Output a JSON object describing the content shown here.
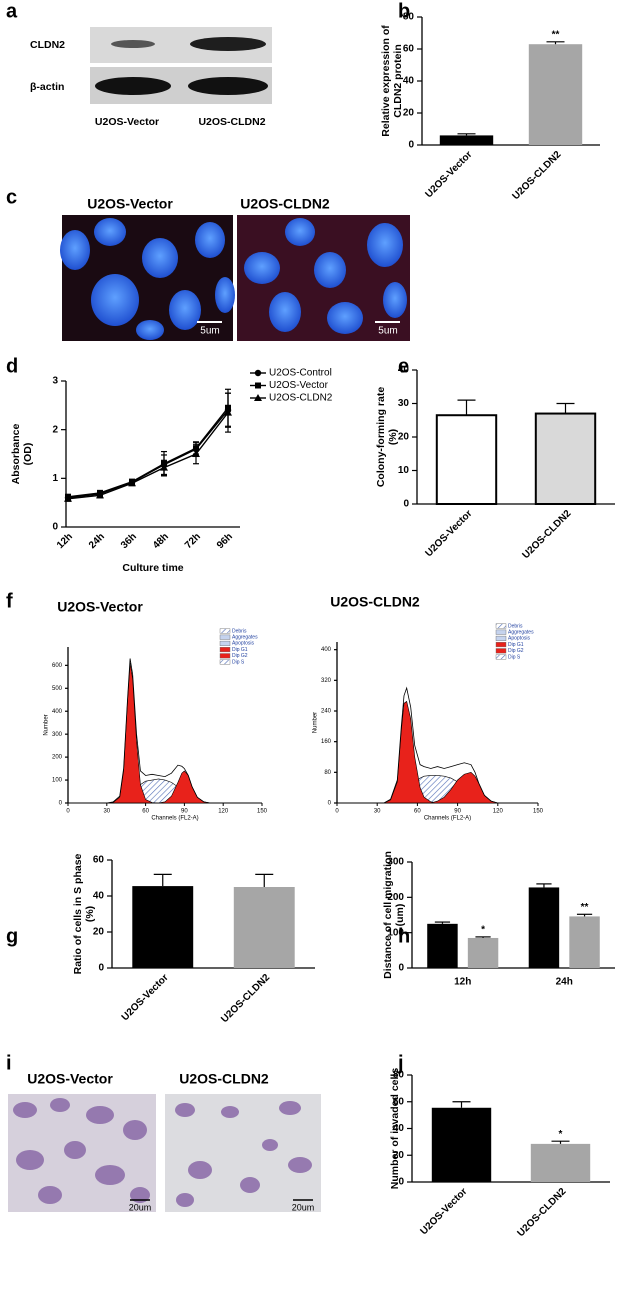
{
  "blot": {
    "panel": "a",
    "rows": [
      "CLDN2",
      "β-actin"
    ],
    "lanes": [
      "U2OS-Vector",
      "U2OS-CLDN2"
    ]
  },
  "immunofluorescence": {
    "panel": "c",
    "titles": [
      "U2OS-Vector",
      "U2OS-CLDN2"
    ],
    "scale_bars": [
      "5um",
      "5um"
    ]
  },
  "invasion_images": {
    "panel": "i",
    "titles": [
      "U2OS-Vector",
      "U2OS-CLDN2"
    ],
    "scale_bars": [
      "20um",
      "20um"
    ]
  },
  "chart_data": [
    {
      "panel": "b",
      "type": "bar",
      "categories": [
        "U2OS-Vector",
        "U2OS-CLDN2"
      ],
      "values": [
        6,
        63
      ],
      "errors": [
        1,
        1.5
      ],
      "colors": [
        "#000000",
        "#a6a6a6"
      ],
      "ylim": [
        0,
        80
      ],
      "yticks": [
        0,
        20,
        40,
        60,
        80
      ],
      "ylabel": [
        "Relative expression of",
        "CLDN2 protein"
      ],
      "annotations": [
        {
          "index": 1,
          "text": "**"
        }
      ]
    },
    {
      "panel": "d",
      "type": "line",
      "categories": [
        "12h",
        "24h",
        "36h",
        "48h",
        "72h",
        "96h"
      ],
      "series": [
        {
          "name": "U2OS-Control",
          "color": "#000000",
          "marker": "circle",
          "values": [
            0.6,
            0.68,
            0.92,
            1.28,
            1.6,
            2.4
          ],
          "errors": [
            0.05,
            0.05,
            0.05,
            0.2,
            0.15,
            0.35
          ]
        },
        {
          "name": "U2OS-Vector",
          "color": "#000000",
          "marker": "square",
          "values": [
            0.62,
            0.7,
            0.93,
            1.3,
            1.62,
            2.45
          ],
          "errors": [
            0.05,
            0.05,
            0.05,
            0.25,
            0.12,
            0.38
          ]
        },
        {
          "name": "U2OS-CLDN2",
          "color": "#000000",
          "marker": "triangle",
          "values": [
            0.58,
            0.65,
            0.9,
            1.22,
            1.5,
            2.35
          ],
          "errors": [
            0.05,
            0.05,
            0.05,
            0.15,
            0.2,
            0.4
          ]
        }
      ],
      "ylim": [
        0,
        3
      ],
      "yticks": [
        0,
        1,
        2,
        3
      ],
      "ylabel": [
        "Absorbance",
        "(OD)"
      ],
      "xlabel": "Culture time"
    },
    {
      "panel": "e",
      "type": "bar",
      "categories": [
        "U2OS-Vector",
        "U2OS-CLDN2"
      ],
      "values": [
        26.5,
        27
      ],
      "errors": [
        4.5,
        3
      ],
      "colors": [
        "#ffffff",
        "#d9d9d9"
      ],
      "edgecolor": "#000000",
      "ylim": [
        0,
        40
      ],
      "yticks": [
        0,
        10,
        20,
        30,
        40
      ],
      "ylabel": [
        "Colony-forming rate",
        "(%)"
      ]
    },
    {
      "panel": "f",
      "type": "area",
      "title": "U2OS-Vector",
      "xlabel": "Channels (FL2-A)",
      "ylabel": "Number",
      "xlim": [
        0,
        150
      ],
      "xticks": [
        0,
        30,
        60,
        90,
        120,
        150
      ],
      "ylim": [
        0,
        680
      ],
      "yticks": [
        0,
        100,
        200,
        300,
        400,
        500,
        600
      ],
      "legend": [
        {
          "name": "Debris",
          "color": "#c5d3ee",
          "hatch": true
        },
        {
          "name": "Aggregates",
          "color": "#c5d3ee"
        },
        {
          "name": "Apoptosis",
          "color": "#c5d3ee"
        },
        {
          "name": "Dip G1",
          "color": "#e8221b"
        },
        {
          "name": "Dip G2",
          "color": "#e8221b"
        },
        {
          "name": "Dip S",
          "color": "#ffffff",
          "hatch": true
        }
      ],
      "x": [
        30,
        35,
        40,
        43,
        46,
        48,
        50,
        53,
        56,
        60,
        65,
        70,
        75,
        80,
        85,
        88,
        90,
        93,
        96,
        100,
        105,
        110
      ],
      "series": [
        {
          "legend": 5,
          "color": "#ffffff",
          "hatch": true,
          "values": [
            0,
            0,
            0,
            0,
            0,
            5,
            30,
            60,
            80,
            95,
            100,
            105,
            100,
            90,
            70,
            50,
            40,
            20,
            8,
            2,
            0,
            0
          ]
        },
        {
          "legend": 3,
          "color": "#e8221b",
          "values": [
            0,
            3,
            25,
            140,
            440,
            610,
            540,
            270,
            80,
            15,
            2,
            0,
            0,
            0,
            0,
            0,
            0,
            0,
            0,
            0,
            0,
            0
          ]
        },
        {
          "legend": 4,
          "color": "#e8221b",
          "values": [
            0,
            0,
            0,
            0,
            0,
            0,
            0,
            0,
            0,
            0,
            0,
            0,
            5,
            30,
            90,
            130,
            140,
            120,
            70,
            25,
            5,
            0
          ]
        },
        {
          "color": "#000000",
          "outline": true,
          "values": [
            0,
            5,
            30,
            150,
            450,
            630,
            560,
            300,
            140,
            120,
            125,
            120,
            115,
            130,
            165,
            160,
            150,
            120,
            70,
            25,
            5,
            0
          ]
        }
      ]
    },
    {
      "type": "area",
      "title": "U2OS-CLDN2",
      "xlabel": "Channels (FL2-A)",
      "ylabel": "Number",
      "xlim": [
        0,
        150
      ],
      "xticks": [
        0,
        30,
        60,
        90,
        120,
        150
      ],
      "ylim": [
        0,
        420
      ],
      "yticks": [
        0,
        80,
        160,
        240,
        320,
        400
      ],
      "legend": [
        {
          "name": "Debris",
          "color": "#c5d3ee",
          "hatch": true
        },
        {
          "name": "Aggregates",
          "color": "#c5d3ee"
        },
        {
          "name": "Apoptosis",
          "color": "#c5d3ee"
        },
        {
          "name": "Dip G1",
          "color": "#e8221b"
        },
        {
          "name": "Dip G2",
          "color": "#e8221b"
        },
        {
          "name": "Dip S",
          "color": "#ffffff",
          "hatch": true
        }
      ],
      "x": [
        35,
        40,
        45,
        48,
        50,
        52,
        55,
        58,
        62,
        65,
        70,
        75,
        80,
        85,
        90,
        95,
        100,
        103,
        106,
        110,
        115,
        120
      ],
      "series": [
        {
          "legend": 5,
          "color": "#ffffff",
          "hatch": true,
          "values": [
            0,
            0,
            0,
            5,
            15,
            25,
            40,
            55,
            65,
            70,
            72,
            72,
            70,
            65,
            55,
            40,
            25,
            15,
            8,
            3,
            0,
            0
          ]
        },
        {
          "legend": 3,
          "color": "#e8221b",
          "values": [
            0,
            8,
            55,
            190,
            260,
            265,
            220,
            120,
            40,
            15,
            3,
            0,
            0,
            0,
            0,
            0,
            0,
            0,
            0,
            0,
            0,
            0
          ]
        },
        {
          "legend": 4,
          "color": "#e8221b",
          "values": [
            0,
            0,
            0,
            0,
            0,
            0,
            0,
            0,
            0,
            0,
            0,
            5,
            15,
            35,
            60,
            75,
            80,
            70,
            50,
            20,
            5,
            0
          ]
        },
        {
          "color": "#000000",
          "outline": true,
          "values": [
            0,
            10,
            60,
            200,
            280,
            300,
            250,
            150,
            100,
            95,
            90,
            95,
            90,
            95,
            100,
            105,
            100,
            80,
            50,
            20,
            5,
            0
          ]
        }
      ]
    },
    {
      "panel": "g",
      "type": "bar",
      "categories": [
        "U2OS-Vector",
        "U2OS-CLDN2"
      ],
      "values": [
        45.5,
        45
      ],
      "errors": [
        6.5,
        7
      ],
      "colors": [
        "#000000",
        "#a6a6a6"
      ],
      "ylim": [
        0,
        60
      ],
      "yticks": [
        0,
        20,
        40,
        60
      ],
      "ylabel": [
        "Ratio of cells in S phase",
        "(%)"
      ]
    },
    {
      "panel": "h",
      "type": "bar",
      "categories": [
        "12h",
        "24h"
      ],
      "series": [
        {
          "color": "#000000",
          "values": [
            125,
            228
          ],
          "errors": [
            5,
            10
          ]
        },
        {
          "color": "#a6a6a6",
          "values": [
            85,
            146
          ],
          "errors": [
            3,
            6
          ],
          "annotations": [
            {
              "index": 0,
              "text": "*"
            },
            {
              "index": 1,
              "text": "**"
            }
          ]
        }
      ],
      "ylim": [
        0,
        300
      ],
      "yticks": [
        0,
        100,
        200,
        300
      ],
      "ylabel": [
        "Distance of cell migration",
        "(um)"
      ]
    },
    {
      "panel": "j",
      "type": "bar",
      "categories": [
        "U2OS-Vector",
        "U2OS-CLDN2"
      ],
      "values": [
        55.5,
        28.5
      ],
      "errors": [
        4.5,
        2
      ],
      "colors": [
        "#000000",
        "#a6a6a6"
      ],
      "ylim": [
        0,
        80
      ],
      "yticks": [
        0,
        20,
        40,
        60,
        80
      ],
      "ylabel": [
        "Number of invaded cells"
      ],
      "annotations": [
        {
          "index": 1,
          "text": "*"
        }
      ]
    }
  ]
}
